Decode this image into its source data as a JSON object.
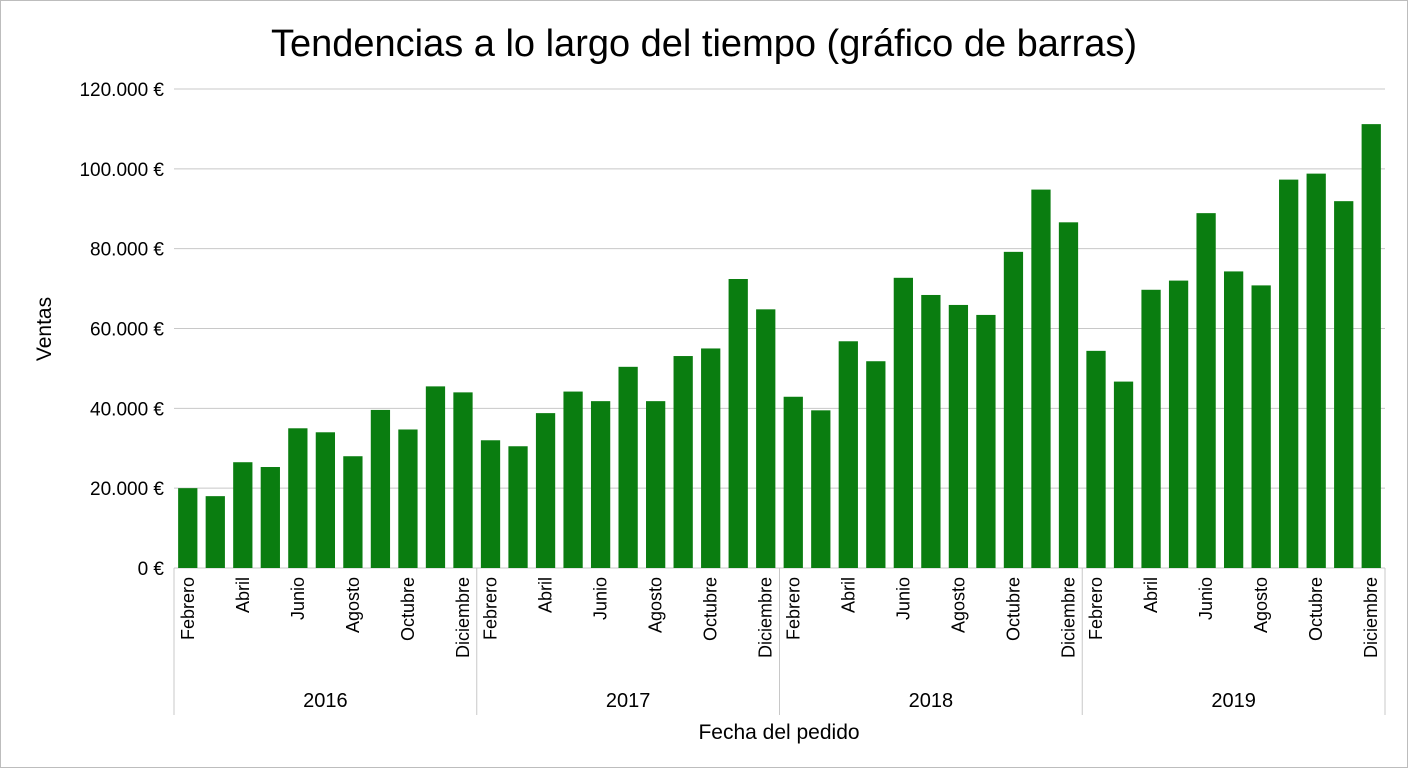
{
  "chart_data": {
    "type": "bar",
    "title": "Tendencias a lo largo del tiempo (gráfico de barras)",
    "xlabel": "Fecha del pedido",
    "ylabel": "Ventas",
    "ylim": [
      0,
      120000
    ],
    "y_ticks": [
      0,
      20000,
      40000,
      60000,
      80000,
      100000,
      120000
    ],
    "y_tick_labels": [
      "0 €",
      "20.000 €",
      "40.000 €",
      "60.000 €",
      "80.000 €",
      "100.000 €",
      "120.000 €"
    ],
    "grid": true,
    "legend": "none",
    "color": "#0a7d10",
    "years": [
      {
        "label": "2016",
        "values": [
          20000,
          18000,
          26500,
          25300,
          35000,
          34000,
          28000,
          39600,
          34700,
          45500,
          44000
        ]
      },
      {
        "label": "2017",
        "values": [
          32000,
          30500,
          38800,
          44200,
          41800,
          50400,
          41800,
          53100,
          55000,
          72400,
          64800
        ]
      },
      {
        "label": "2018",
        "values": [
          42900,
          39500,
          56800,
          51800,
          72700,
          68400,
          65900,
          63400,
          79200,
          94800,
          86600
        ]
      },
      {
        "label": "2019",
        "values": [
          54400,
          46700,
          69700,
          72000,
          88900,
          74300,
          70800,
          97300,
          98800,
          91900,
          111200
        ]
      }
    ],
    "x_tick_labels": [
      "Febrero",
      "Abril",
      "Junio",
      "Agosto",
      "Octubre",
      "Diciembre"
    ]
  }
}
